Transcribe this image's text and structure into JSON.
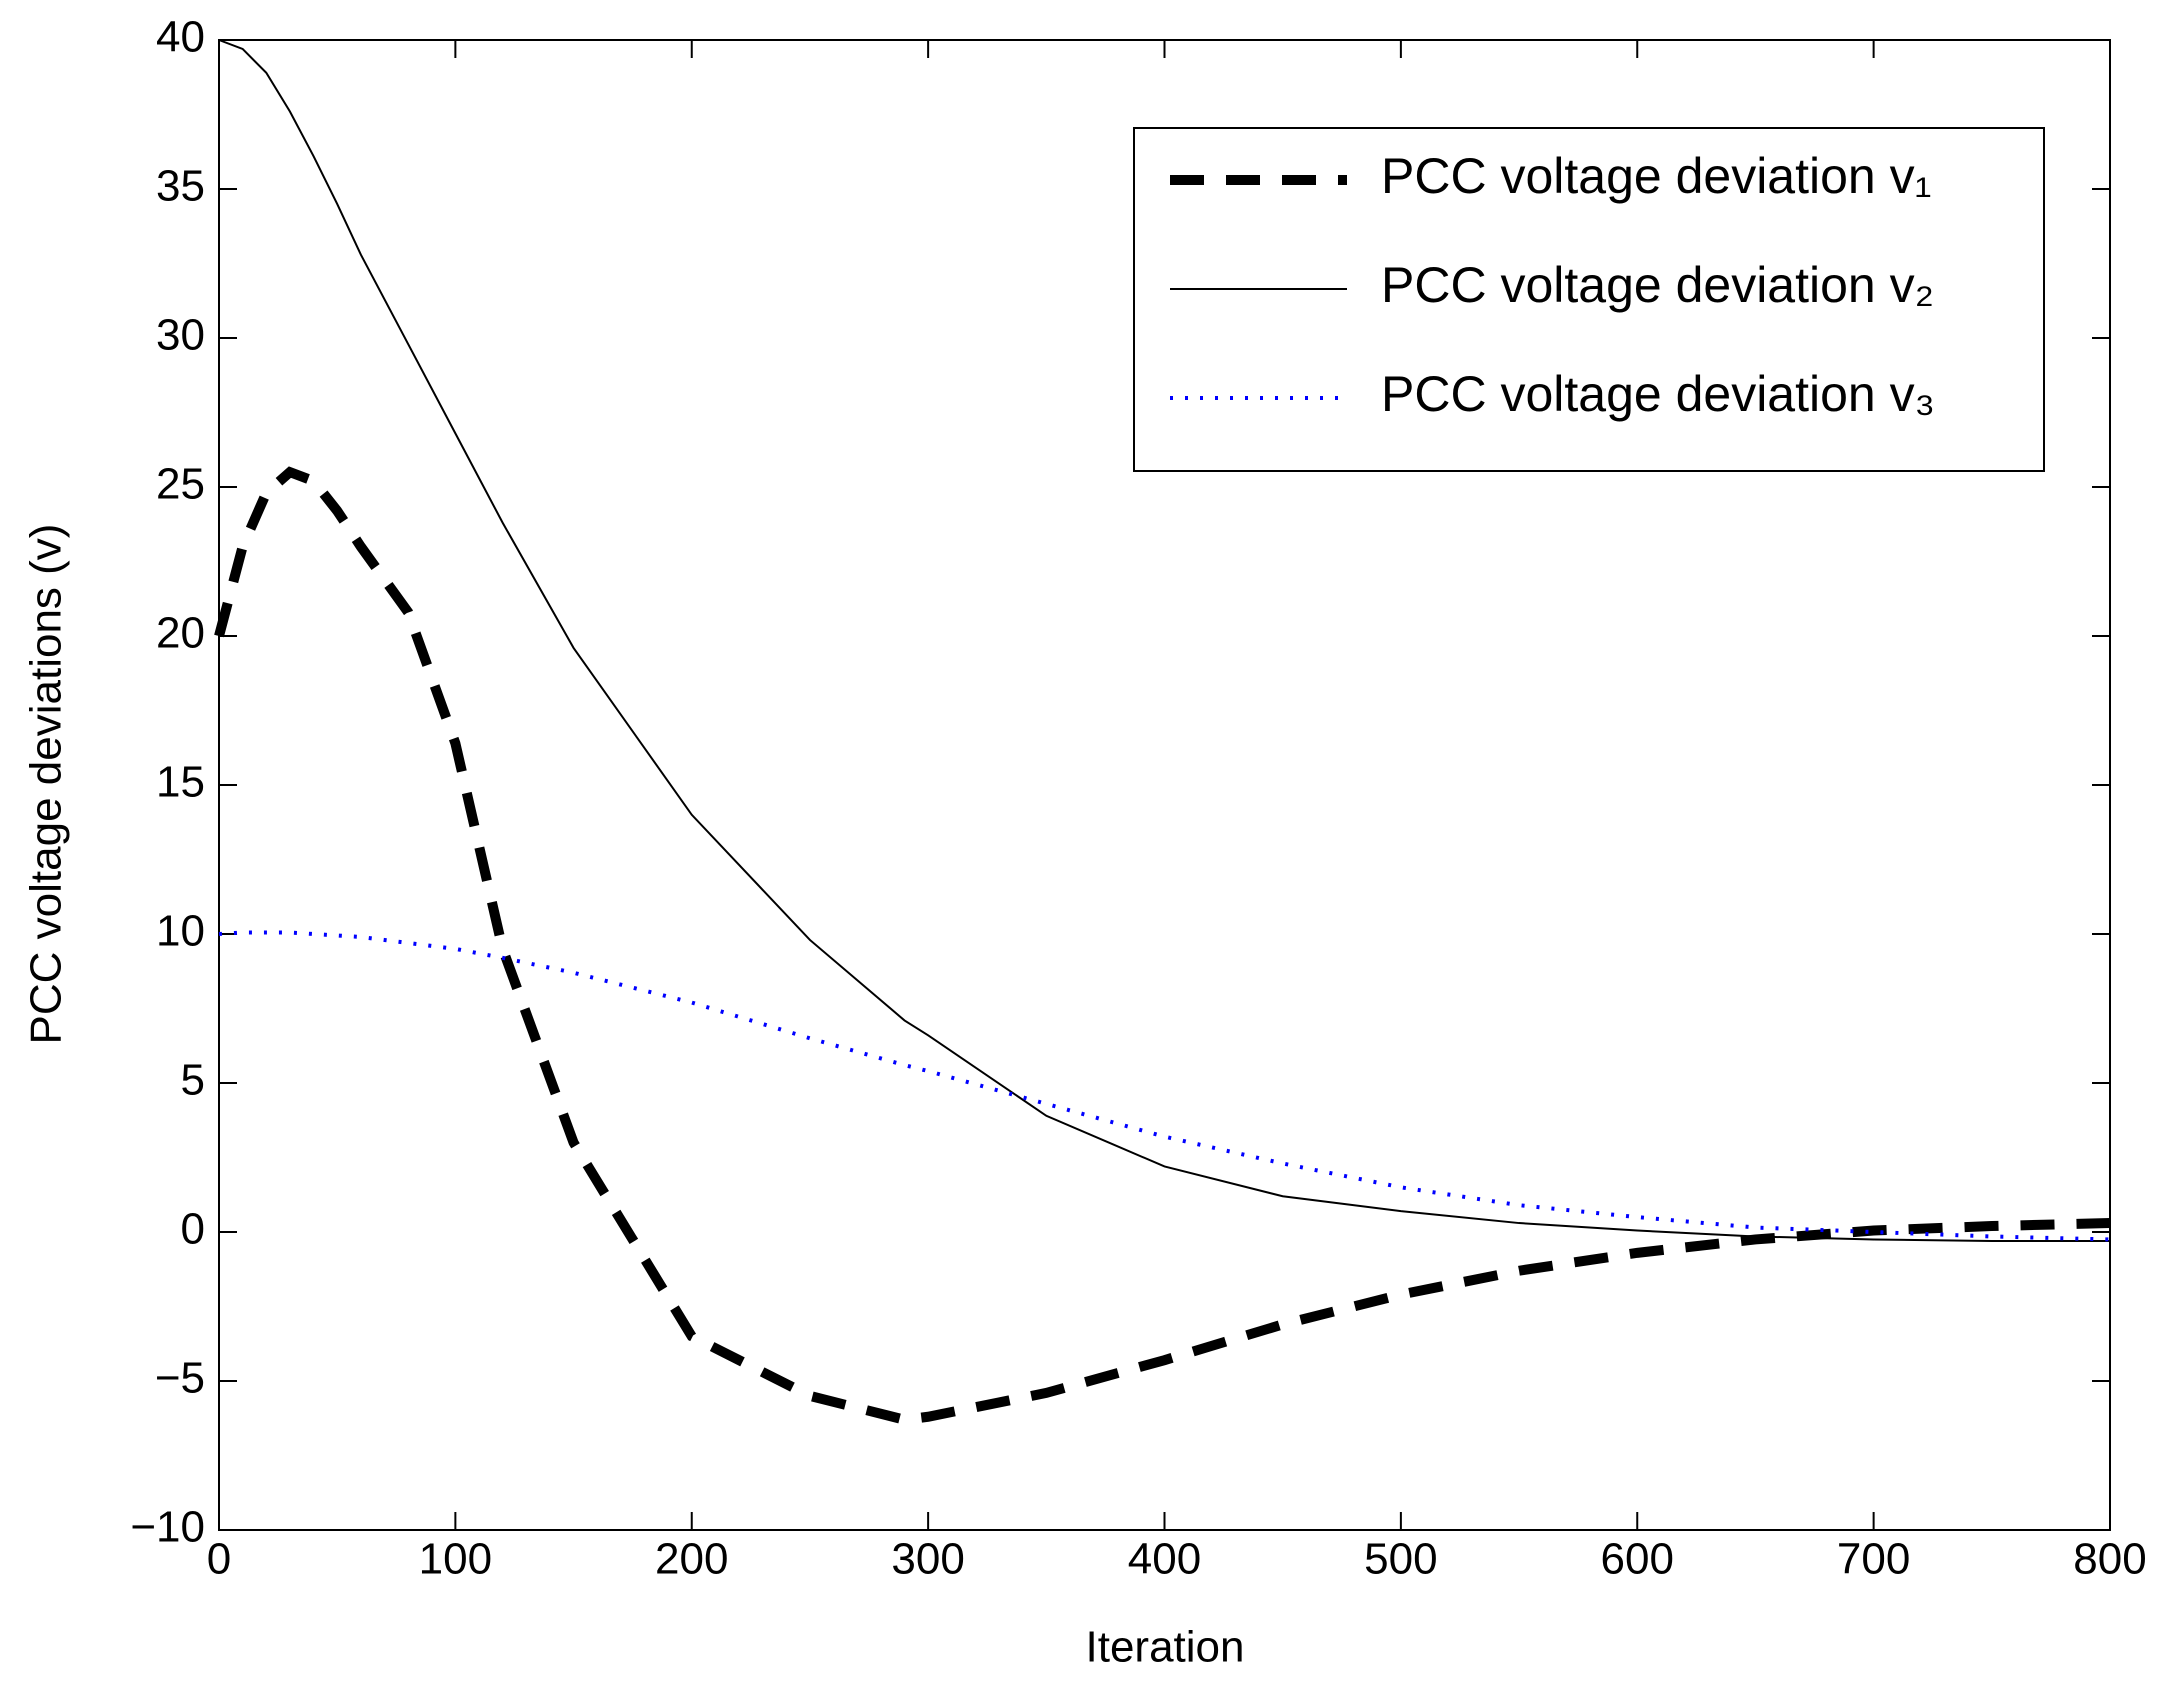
{
  "chart_data": {
    "type": "line",
    "xlabel": "Iteration",
    "ylabel": "PCC voltage deviations (v)",
    "x": [
      0,
      10,
      20,
      30,
      40,
      50,
      60,
      80,
      100,
      120,
      150,
      200,
      250,
      290,
      300,
      350,
      400,
      450,
      500,
      550,
      600,
      650,
      700,
      750,
      800
    ],
    "series": [
      {
        "name": "PCC voltage deviation v₁",
        "color": "#000000",
        "style": "dashed",
        "values": [
          20,
          23,
          24.8,
          25.5,
          25.2,
          24.2,
          23,
          20.8,
          16.4,
          9.5,
          3,
          -3.5,
          -5.5,
          -6.3,
          -6.2,
          -5.4,
          -4.3,
          -3.1,
          -2.1,
          -1.3,
          -0.7,
          -0.25,
          0.05,
          0.2,
          0.3
        ]
      },
      {
        "name": "PCC voltage deviation  v₂",
        "color": "#000000",
        "style": "solid",
        "values": [
          40,
          39.7,
          38.9,
          37.6,
          36.1,
          34.5,
          32.8,
          29.8,
          26.8,
          23.8,
          19.6,
          14,
          9.8,
          7.1,
          6.6,
          3.9,
          2.2,
          1.2,
          0.7,
          0.3,
          0.05,
          -0.15,
          -0.25,
          -0.3,
          -0.3
        ]
      },
      {
        "name": "PCC voltage deviation  v₃",
        "color": "#0000ff",
        "style": "dotted",
        "values": [
          10,
          10.05,
          10.05,
          10.05,
          10,
          9.95,
          9.9,
          9.7,
          9.5,
          9.2,
          8.7,
          7.7,
          6.5,
          5.6,
          5.4,
          4.3,
          3.2,
          2.3,
          1.5,
          0.9,
          0.5,
          0.15,
          0,
          -0.15,
          -0.25
        ]
      }
    ],
    "xlim": [
      0,
      800
    ],
    "xticks": [
      0,
      100,
      200,
      300,
      400,
      500,
      600,
      700,
      800
    ],
    "ylim": [
      -10,
      40
    ],
    "yticks": [
      {
        "value": -10,
        "label": "−10"
      },
      {
        "value": -5,
        "label": "−5"
      },
      0,
      5,
      10,
      15,
      20,
      25,
      30,
      35,
      40
    ],
    "legend": "upper right",
    "grid": false
  }
}
